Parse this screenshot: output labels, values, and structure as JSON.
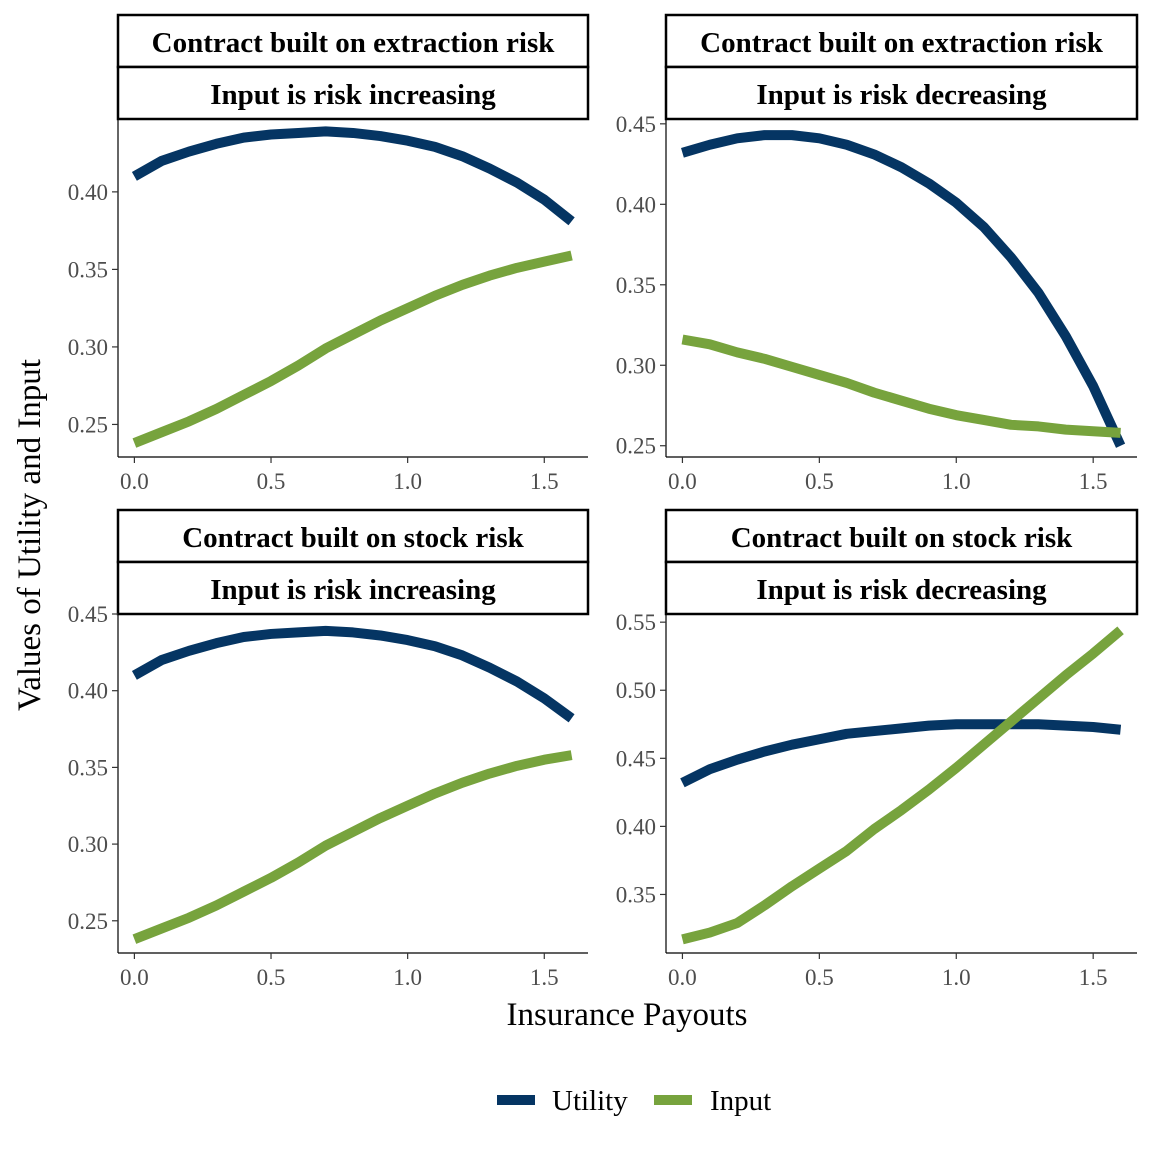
{
  "chart_data": {
    "type": "line",
    "xlabel": "Insurance Payouts",
    "ylabel": "Values of Utility and Input",
    "legend_position": "bottom",
    "grid": false,
    "colors": {
      "Utility": "#053563",
      "Input": "#77a33d"
    },
    "legend": [
      {
        "name": "Utility",
        "color": "#053563"
      },
      {
        "name": "Input",
        "color": "#77a33d"
      }
    ],
    "panels": [
      {
        "strip_top": "Contract built on extraction risk",
        "strip_bottom": "Input is risk increasing",
        "xlim": [
          -0.06,
          1.66
        ],
        "ylim": [
          0.229,
          0.447
        ],
        "xticks": [
          0.0,
          0.5,
          1.0,
          1.5
        ],
        "xtick_labels": [
          "0.0",
          "0.5",
          "1.0",
          "1.5"
        ],
        "yticks": [
          0.25,
          0.3,
          0.35,
          0.4
        ],
        "ytick_labels": [
          "0.25",
          "0.30",
          "0.35",
          "0.40"
        ],
        "x": [
          0.0,
          0.1,
          0.2,
          0.3,
          0.4,
          0.5,
          0.6,
          0.7,
          0.8,
          0.9,
          1.0,
          1.1,
          1.2,
          1.3,
          1.4,
          1.5,
          1.6
        ],
        "series": [
          {
            "name": "Utility",
            "values": [
              0.41,
              0.42,
              0.426,
              0.431,
              0.435,
              0.437,
              0.438,
              0.439,
              0.438,
              0.436,
              0.433,
              0.429,
              0.423,
              0.415,
              0.406,
              0.395,
              0.381
            ]
          },
          {
            "name": "Input",
            "values": [
              0.238,
              0.245,
              0.252,
              0.26,
              0.269,
              0.278,
              0.288,
              0.299,
              0.308,
              0.317,
              0.325,
              0.333,
              0.34,
              0.346,
              0.351,
              0.355,
              0.359
            ]
          }
        ]
      },
      {
        "strip_top": "Contract built on extraction risk",
        "strip_bottom": "Input is risk decreasing",
        "xlim": [
          -0.06,
          1.66
        ],
        "ylim": [
          0.243,
          0.453
        ],
        "xticks": [
          0.0,
          0.5,
          1.0,
          1.5
        ],
        "xtick_labels": [
          "0.0",
          "0.5",
          "1.0",
          "1.5"
        ],
        "yticks": [
          0.25,
          0.3,
          0.35,
          0.4,
          0.45
        ],
        "ytick_labels": [
          "0.25",
          "0.30",
          "0.35",
          "0.40",
          "0.45"
        ],
        "x": [
          0.0,
          0.1,
          0.2,
          0.3,
          0.4,
          0.5,
          0.6,
          0.7,
          0.8,
          0.9,
          1.0,
          1.1,
          1.2,
          1.3,
          1.4,
          1.5,
          1.6
        ],
        "series": [
          {
            "name": "Utility",
            "values": [
              0.432,
              0.437,
              0.441,
              0.443,
              0.443,
              0.441,
              0.437,
              0.431,
              0.423,
              0.413,
              0.401,
              0.386,
              0.367,
              0.345,
              0.318,
              0.287,
              0.25
            ]
          },
          {
            "name": "Input",
            "values": [
              0.316,
              0.313,
              0.308,
              0.304,
              0.299,
              0.294,
              0.289,
              0.283,
              0.278,
              0.273,
              0.269,
              0.266,
              0.263,
              0.262,
              0.26,
              0.259,
              0.258
            ]
          }
        ]
      },
      {
        "strip_top": "Contract built on stock risk",
        "strip_bottom": "Input is risk increasing",
        "xlim": [
          -0.06,
          1.66
        ],
        "ylim": [
          0.229,
          0.45
        ],
        "xticks": [
          0.0,
          0.5,
          1.0,
          1.5
        ],
        "xtick_labels": [
          "0.0",
          "0.5",
          "1.0",
          "1.5"
        ],
        "yticks": [
          0.25,
          0.3,
          0.35,
          0.4,
          0.45
        ],
        "ytick_labels": [
          "0.25",
          "0.30",
          "0.35",
          "0.40",
          "0.45"
        ],
        "x": [
          0.0,
          0.1,
          0.2,
          0.3,
          0.4,
          0.5,
          0.6,
          0.7,
          0.8,
          0.9,
          1.0,
          1.1,
          1.2,
          1.3,
          1.4,
          1.5,
          1.6
        ],
        "series": [
          {
            "name": "Utility",
            "values": [
              0.41,
              0.42,
              0.426,
              0.431,
              0.435,
              0.437,
              0.438,
              0.439,
              0.438,
              0.436,
              0.433,
              0.429,
              0.423,
              0.415,
              0.406,
              0.395,
              0.382
            ]
          },
          {
            "name": "Input",
            "values": [
              0.238,
              0.245,
              0.252,
              0.26,
              0.269,
              0.278,
              0.288,
              0.299,
              0.308,
              0.317,
              0.325,
              0.333,
              0.34,
              0.346,
              0.351,
              0.355,
              0.358
            ]
          }
        ]
      },
      {
        "strip_top": "Contract built on stock risk",
        "strip_bottom": "Input is risk decreasing",
        "xlim": [
          -0.06,
          1.66
        ],
        "ylim": [
          0.307,
          0.556
        ],
        "xticks": [
          0.0,
          0.5,
          1.0,
          1.5
        ],
        "xtick_labels": [
          "0.0",
          "0.5",
          "1.0",
          "1.5"
        ],
        "yticks": [
          0.35,
          0.4,
          0.45,
          0.5,
          0.55
        ],
        "ytick_labels": [
          "0.35",
          "0.40",
          "0.45",
          "0.50",
          "0.55"
        ],
        "x": [
          0.0,
          0.1,
          0.2,
          0.3,
          0.4,
          0.5,
          0.6,
          0.7,
          0.8,
          0.9,
          1.0,
          1.1,
          1.2,
          1.3,
          1.4,
          1.5,
          1.6
        ],
        "series": [
          {
            "name": "Utility",
            "values": [
              0.432,
              0.442,
              0.449,
              0.455,
              0.46,
              0.464,
              0.468,
              0.47,
              0.472,
              0.474,
              0.475,
              0.475,
              0.475,
              0.475,
              0.474,
              0.473,
              0.471
            ]
          },
          {
            "name": "Input",
            "values": [
              0.317,
              0.322,
              0.329,
              0.342,
              0.356,
              0.369,
              0.382,
              0.398,
              0.412,
              0.427,
              0.443,
              0.46,
              0.477,
              0.494,
              0.511,
              0.527,
              0.544
            ]
          }
        ]
      }
    ]
  }
}
